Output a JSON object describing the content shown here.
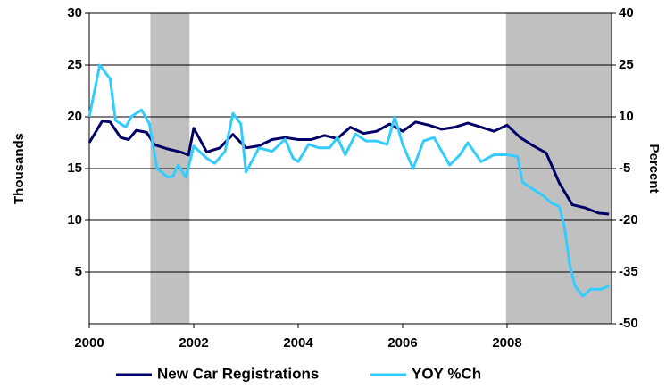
{
  "chart_data": {
    "type": "line",
    "ylabel": "Thousands",
    "y2label": "Percent",
    "xlim": [
      2000,
      2010
    ],
    "xticks": [
      2000,
      2002,
      2004,
      2006,
      2008
    ],
    "ylim": [
      0,
      30
    ],
    "yticks": [
      5,
      10,
      15,
      20,
      25,
      30
    ],
    "y2lim": [
      -50,
      40
    ],
    "y2ticks": [
      -50,
      -35,
      -20,
      -5,
      10,
      25,
      40
    ],
    "grid": true,
    "legend": "bottom",
    "shaded": [
      {
        "from": 2001.17,
        "to": 2001.92,
        "color": "#c0c0c0"
      },
      {
        "from": 2007.98,
        "to": 2010,
        "color": "#c0c0c0"
      }
    ],
    "series": [
      {
        "name": "New Car Registrations",
        "color": "#000066",
        "x": [
          2000,
          2000.25,
          2000.4,
          2000.6,
          2000.75,
          2000.9,
          2001.1,
          2001.25,
          2001.5,
          2001.75,
          2001.9,
          2002,
          2002.25,
          2002.5,
          2002.75,
          2003,
          2003.25,
          2003.5,
          2003.75,
          2004,
          2004.25,
          2004.5,
          2004.75,
          2005,
          2005.25,
          2005.5,
          2005.75,
          2006,
          2006.25,
          2006.5,
          2006.75,
          2007,
          2007.25,
          2007.5,
          2007.75,
          2008,
          2008.25,
          2008.5,
          2008.75,
          2009,
          2009.25,
          2009.5,
          2009.75,
          2009.95
        ],
        "values": [
          17.5,
          19.6,
          19.5,
          18.0,
          17.8,
          18.7,
          18.5,
          17.3,
          16.9,
          16.6,
          16.3,
          18.9,
          16.6,
          17.0,
          18.3,
          17.0,
          17.2,
          17.8,
          18.0,
          17.8,
          17.8,
          18.2,
          17.9,
          19.0,
          18.4,
          18.6,
          19.3,
          18.6,
          19.5,
          19.2,
          18.8,
          19.0,
          19.4,
          19.0,
          18.6,
          19.2,
          18.0,
          17.2,
          16.5,
          13.6,
          11.5,
          11.2,
          10.7,
          10.6
        ]
      },
      {
        "name": "YOY %Ch",
        "color": "#33ccff",
        "axis": "y2",
        "x": [
          2000,
          2000.2,
          2000.4,
          2000.5,
          2000.7,
          2000.8,
          2001,
          2001.15,
          2001.3,
          2001.5,
          2001.6,
          2001.7,
          2001.85,
          2002,
          2002.25,
          2002.4,
          2002.6,
          2002.75,
          2002.9,
          2003,
          2003.25,
          2003.5,
          2003.75,
          2003.9,
          2004,
          2004.2,
          2004.4,
          2004.6,
          2004.75,
          2004.9,
          2005.1,
          2005.3,
          2005.5,
          2005.7,
          2005.85,
          2006,
          2006.2,
          2006.4,
          2006.6,
          2006.75,
          2006.9,
          2007.1,
          2007.25,
          2007.5,
          2007.75,
          2008,
          2008.2,
          2008.3,
          2008.5,
          2008.7,
          2008.85,
          2009,
          2009.1,
          2009.2,
          2009.3,
          2009.45,
          2009.6,
          2009.8,
          2009.95
        ],
        "values": [
          10,
          25,
          21,
          9,
          7,
          10,
          12,
          8,
          -5,
          -7.5,
          -7.3,
          -4,
          -7.5,
          1.5,
          -2,
          -3.5,
          0,
          11,
          8,
          -6,
          1,
          0,
          3.5,
          -2,
          -3,
          2,
          1,
          1,
          4,
          -1,
          5,
          3,
          3,
          2,
          10,
          2,
          -5,
          3,
          4,
          0,
          -4,
          -1,
          2.5,
          -3,
          -1,
          -1,
          -1.5,
          -9,
          -11,
          -13,
          -15,
          -16,
          -22,
          -33,
          -39,
          -42,
          -40,
          -40,
          -39
        ]
      }
    ]
  }
}
